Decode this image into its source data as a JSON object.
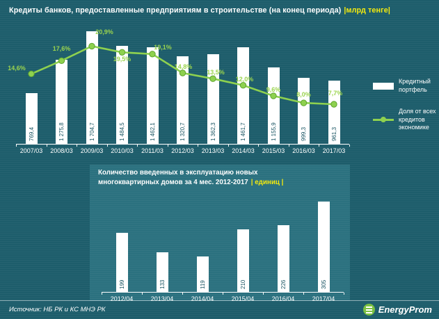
{
  "header": {
    "title": "Кредиты банков, предоставленные предприятиям в строительстве (на конец периода)",
    "unit": "|млрд тенге|"
  },
  "legend": {
    "bar_label": "Кредитный портфель",
    "line_label": "Доля от всех кредитов экономике"
  },
  "panel": {
    "title_line1": "Количество введенных в эксплуатацию новых",
    "title_line2": "многоквартирных домов за 4 мес. 2012-2017",
    "unit": "| единиц |"
  },
  "footer": {
    "source": "Источник: НБ РК и КС МНЭ РК",
    "brand": "EnergyProm"
  },
  "colors": {
    "background": "#1d5d6b",
    "panel": "#2b717f",
    "bar": "#ffffff",
    "line": "#8ed14f",
    "line_point_stroke": "#5da32e",
    "percent_label": "#9bd44e",
    "unit_yellow": "#f4ea0e",
    "bar_value_text": "#155260",
    "logo_green": "#7cc143"
  },
  "chart_data": [
    {
      "type": "bar",
      "title": "Кредиты банков, предоставленные предприятиям в строительстве (на конец периода)",
      "ylabel": "млрд тенге",
      "legend_position": "right",
      "grid": false,
      "categories": [
        "2007/03",
        "2008/03",
        "2009/03",
        "2010/03",
        "2011/03",
        "2012/03",
        "2013/03",
        "2014/03",
        "2015/03",
        "2016/03",
        "2017/03"
      ],
      "series": [
        {
          "name": "Кредитный портфель",
          "type": "bar",
          "values": [
            769.4,
            1275.8,
            1704.7,
            1484.5,
            1462.1,
            1320.7,
            1362.3,
            1461.7,
            1155.9,
            999.3,
            961.3
          ],
          "value_labels": [
            "769,4",
            "1 275,8",
            "1 704,7",
            "1 484,5",
            "1 462,1",
            "1 320,7",
            "1 362,3",
            "1 461,7",
            "1 155,9",
            "999,3",
            "961,3"
          ]
        },
        {
          "name": "Доля от всех кредитов экономике",
          "type": "line",
          "unit": "%",
          "values": [
            14.6,
            17.6,
            20.9,
            19.5,
            19.1,
            14.8,
            13.5,
            12.0,
            9.6,
            8.0,
            7.7
          ],
          "value_labels": [
            "14,6%",
            "17,6%",
            "20,9%",
            "19,5%",
            "19,1%",
            "14,8%",
            "13,5%",
            "12,0%",
            "9,6%",
            "8,0%",
            "7,7%"
          ]
        }
      ]
    },
    {
      "type": "bar",
      "title": "Количество введенных в эксплуатацию новых многоквартирных домов за 4 мес. 2012-2017",
      "ylabel": "единиц",
      "grid": false,
      "categories": [
        "2012/04",
        "2013/04",
        "2014/04",
        "2015/04",
        "2016/04",
        "2017/04"
      ],
      "values": [
        199,
        133,
        119,
        210,
        226,
        305
      ],
      "value_labels": [
        "199",
        "133",
        "119",
        "210",
        "226",
        "305"
      ]
    }
  ]
}
